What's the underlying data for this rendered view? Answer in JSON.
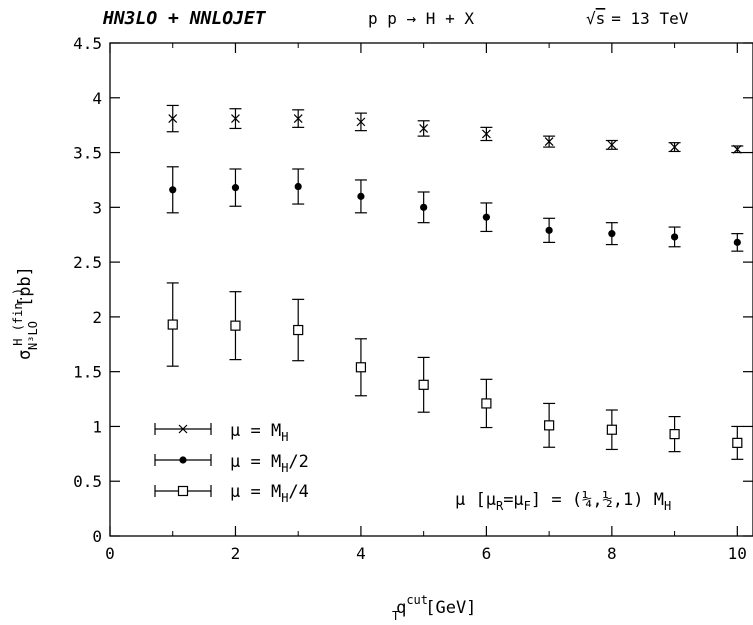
{
  "header": {
    "left": "HN3LO + NNLOJET",
    "process": "p p → H + X",
    "energy_sqrt": "√",
    "energy_var": "s",
    "energy_rest": "= 13 TeV"
  },
  "annotation": {
    "prefix": "μ [μ",
    "sub_r": "R",
    "mid": "=μ",
    "sub_f": "F",
    "suffix": "] = (¼,½,1) M",
    "sub_h": "H"
  },
  "colors": {
    "axes": "#000000",
    "background": "#ffffff"
  },
  "chart_data": {
    "type": "scatter",
    "x_tick_labels": [
      "0",
      "2",
      "4",
      "6",
      "8",
      "10"
    ],
    "y_tick_labels": [
      "0",
      "0.5",
      "1",
      "1.5",
      "2",
      "2.5",
      "3",
      "3.5",
      "4",
      "4.5"
    ],
    "xlim": [
      0,
      10.25
    ],
    "ylim": [
      0,
      4.5
    ],
    "xlabel": {
      "main": "q",
      "sup": "cut",
      "sub": "T",
      "unit": "[GeV]"
    },
    "ylabel": {
      "main": "σ",
      "sup": "H (fin.)",
      "sub": "N³LO",
      "unit": "[pb]"
    },
    "legend_position": "bottom-left",
    "grid": false,
    "series": [
      {
        "name": "μ = M",
        "name_sub": "H",
        "marker": "cross",
        "x": [
          1,
          2,
          3,
          4,
          5,
          6,
          7,
          8,
          9,
          10
        ],
        "y": [
          3.81,
          3.81,
          3.81,
          3.78,
          3.72,
          3.67,
          3.6,
          3.57,
          3.55,
          3.53
        ],
        "err_low": [
          0.12,
          0.09,
          0.08,
          0.08,
          0.07,
          0.06,
          0.05,
          0.04,
          0.04,
          0.03
        ],
        "err_high": [
          0.12,
          0.09,
          0.08,
          0.08,
          0.07,
          0.06,
          0.05,
          0.04,
          0.04,
          0.03
        ]
      },
      {
        "name": "μ = M",
        "name_sub": "H",
        "name_suffix": "/2",
        "marker": "dot",
        "x": [
          1,
          2,
          3,
          4,
          5,
          6,
          7,
          8,
          9,
          10
        ],
        "y": [
          3.16,
          3.18,
          3.19,
          3.1,
          3.0,
          2.91,
          2.79,
          2.76,
          2.73,
          2.68
        ],
        "err_low": [
          0.21,
          0.17,
          0.16,
          0.15,
          0.14,
          0.13,
          0.11,
          0.1,
          0.09,
          0.08
        ],
        "err_high": [
          0.21,
          0.17,
          0.16,
          0.15,
          0.14,
          0.13,
          0.11,
          0.1,
          0.09,
          0.08
        ]
      },
      {
        "name": "μ = M",
        "name_sub": "H",
        "name_suffix": "/4",
        "marker": "square",
        "x": [
          1,
          2,
          3,
          4,
          5,
          6,
          7,
          8,
          9,
          10
        ],
        "y": [
          1.93,
          1.92,
          1.88,
          1.54,
          1.38,
          1.21,
          1.01,
          0.97,
          0.93,
          0.85
        ],
        "err_low": [
          0.38,
          0.31,
          0.28,
          0.26,
          0.25,
          0.22,
          0.2,
          0.18,
          0.16,
          0.15
        ],
        "err_high": [
          0.38,
          0.31,
          0.28,
          0.26,
          0.25,
          0.22,
          0.2,
          0.18,
          0.16,
          0.15
        ]
      }
    ]
  }
}
